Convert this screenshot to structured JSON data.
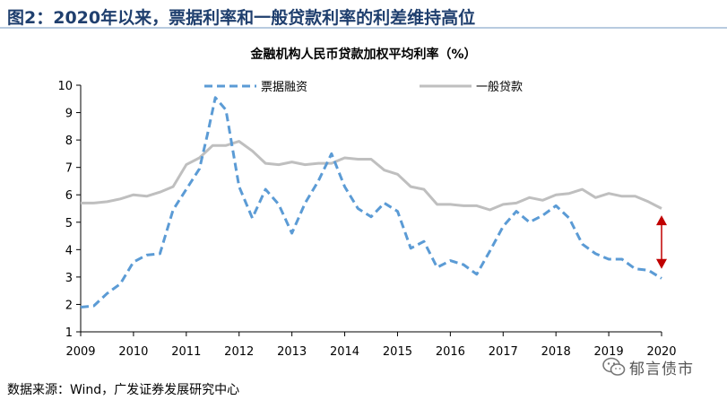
{
  "figure": {
    "title": "图2：2020年以来，票据利率和一般贷款利率的利差维持高位"
  },
  "source": "数据来源：Wind，广发证券发展研究中心",
  "watermark": {
    "text": "郁言债市",
    "icon": "wechat-icon"
  },
  "chart_data": {
    "type": "line",
    "title": "金融机构人民币贷款加权平均利率（%）",
    "xlabel": "",
    "ylabel": "",
    "xlim": [
      2009,
      2020
    ],
    "ylim": [
      1,
      10
    ],
    "x_ticks": [
      "2009",
      "2010",
      "2011",
      "2012",
      "2013",
      "2014",
      "2015",
      "2016",
      "2017",
      "2018",
      "2019",
      "2020"
    ],
    "y_ticks": [
      "1",
      "2",
      "3",
      "4",
      "5",
      "6",
      "7",
      "8",
      "9",
      "10"
    ],
    "legend_position": "top",
    "grid": false,
    "series": [
      {
        "name": "票据融资",
        "style": "dashed",
        "color": "#5b9bd5",
        "x": [
          2009.0,
          2009.25,
          2009.5,
          2009.75,
          2010.0,
          2010.25,
          2010.5,
          2010.75,
          2011.0,
          2011.25,
          2011.4,
          2011.55,
          2011.75,
          2012.0,
          2012.25,
          2012.5,
          2012.75,
          2013.0,
          2013.25,
          2013.5,
          2013.75,
          2014.0,
          2014.25,
          2014.5,
          2014.75,
          2015.0,
          2015.25,
          2015.5,
          2015.75,
          2016.0,
          2016.25,
          2016.5,
          2016.75,
          2017.0,
          2017.25,
          2017.5,
          2017.75,
          2018.0,
          2018.25,
          2018.5,
          2018.75,
          2019.0,
          2019.25,
          2019.5,
          2019.75,
          2020.0
        ],
        "y": [
          1.9,
          1.95,
          2.4,
          2.75,
          3.55,
          3.8,
          3.85,
          5.45,
          6.2,
          6.95,
          8.2,
          9.55,
          9.1,
          6.3,
          5.15,
          6.2,
          5.65,
          4.6,
          5.7,
          6.5,
          7.5,
          6.3,
          5.5,
          5.2,
          5.7,
          5.4,
          4.05,
          4.3,
          3.35,
          3.6,
          3.45,
          3.1,
          3.95,
          4.85,
          5.4,
          5.0,
          5.25,
          5.6,
          5.15,
          4.2,
          3.85,
          3.65,
          3.65,
          3.3,
          3.25,
          2.95
        ]
      },
      {
        "name": "一般贷款",
        "style": "solid",
        "color": "#bfbfbf",
        "x": [
          2009.0,
          2009.25,
          2009.5,
          2009.75,
          2010.0,
          2010.25,
          2010.5,
          2010.75,
          2011.0,
          2011.25,
          2011.5,
          2011.75,
          2012.0,
          2012.25,
          2012.5,
          2012.75,
          2013.0,
          2013.25,
          2013.5,
          2013.75,
          2014.0,
          2014.25,
          2014.5,
          2014.75,
          2015.0,
          2015.25,
          2015.5,
          2015.75,
          2016.0,
          2016.25,
          2016.5,
          2016.75,
          2017.0,
          2017.25,
          2017.5,
          2017.75,
          2018.0,
          2018.25,
          2018.5,
          2018.75,
          2019.0,
          2019.25,
          2019.5,
          2019.75,
          2020.0
        ],
        "y": [
          5.7,
          5.7,
          5.75,
          5.85,
          6.0,
          5.95,
          6.1,
          6.3,
          7.1,
          7.35,
          7.8,
          7.8,
          7.95,
          7.6,
          7.15,
          7.1,
          7.2,
          7.1,
          7.15,
          7.15,
          7.35,
          7.3,
          7.3,
          6.9,
          6.75,
          6.3,
          6.2,
          5.65,
          5.65,
          5.6,
          5.6,
          5.45,
          5.65,
          5.7,
          5.9,
          5.8,
          6.0,
          6.05,
          6.2,
          5.9,
          6.05,
          5.95,
          5.95,
          5.75,
          5.5
        ]
      }
    ],
    "annotations": [
      {
        "type": "double-arrow",
        "x": 2020.0,
        "y_from": 3.3,
        "y_to": 5.25,
        "color": "#c00000"
      }
    ]
  }
}
